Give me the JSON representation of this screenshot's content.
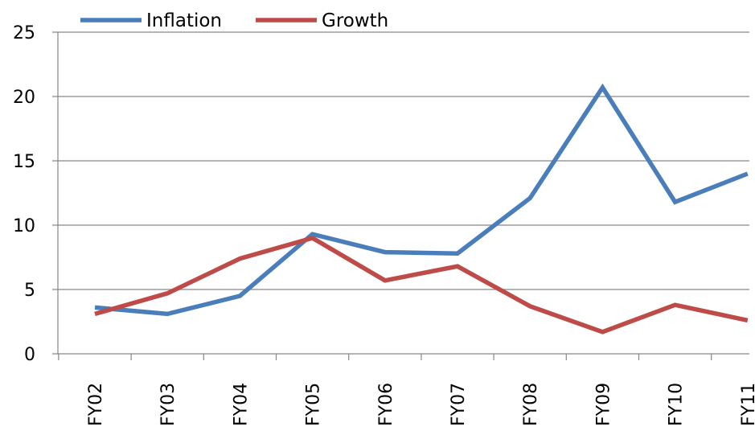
{
  "chart_data": {
    "type": "line",
    "title": "",
    "xlabel": "",
    "ylabel": "",
    "categories": [
      "FY02",
      "FY03",
      "FY04",
      "FY05",
      "FY06",
      "FY07",
      "FY08",
      "FY09",
      "FY10",
      "FY11"
    ],
    "ylim": [
      0,
      25
    ],
    "yticks": [
      "0",
      "5",
      "10",
      "15",
      "20",
      "25"
    ],
    "grid": true,
    "legend_position": "top",
    "series": [
      {
        "name": "Inflation",
        "color": "#4a7ebb",
        "values": [
          3.6,
          3.1,
          4.5,
          9.3,
          7.9,
          7.8,
          12.1,
          20.7,
          11.8,
          14.0
        ]
      },
      {
        "name": "Growth",
        "color": "#be4b48",
        "values": [
          3.1,
          4.7,
          7.4,
          9.0,
          5.7,
          6.8,
          3.7,
          1.7,
          3.8,
          2.6
        ]
      }
    ]
  }
}
